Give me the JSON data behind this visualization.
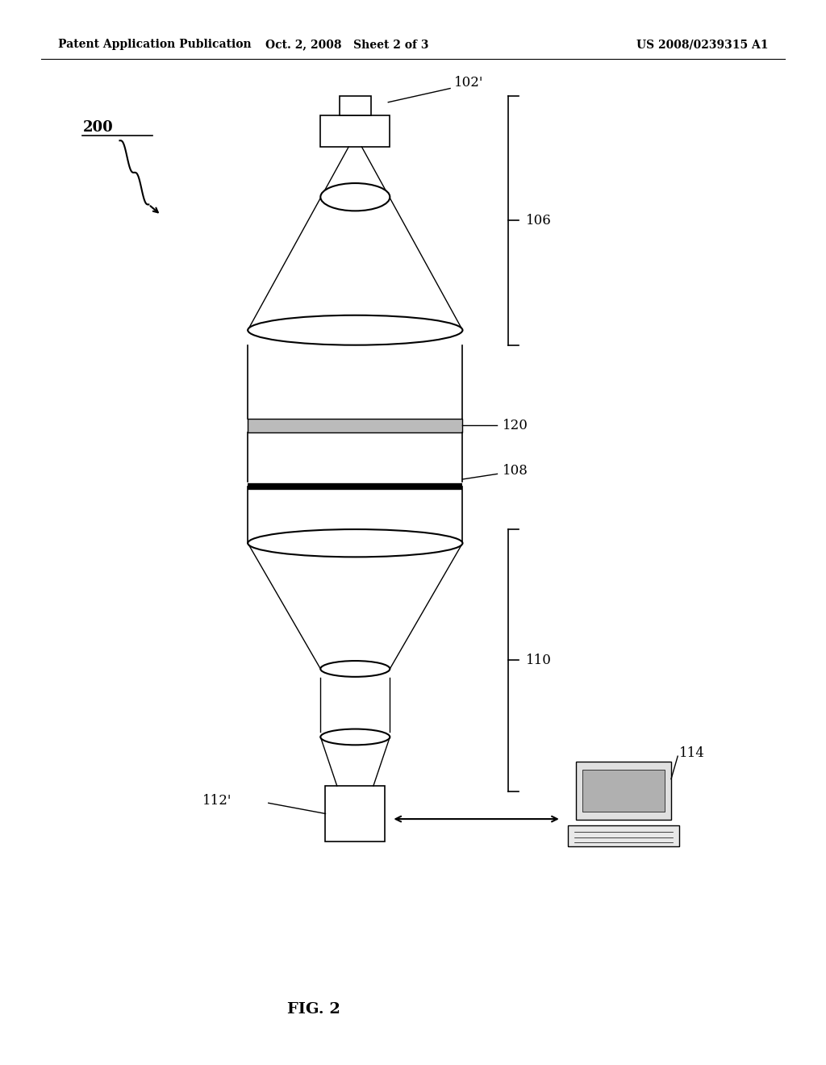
{
  "bg_color": "#ffffff",
  "line_color": "#000000",
  "header_left": "Patent Application Publication",
  "header_center": "Oct. 2, 2008   Sheet 2 of 3",
  "header_right": "US 2008/0239315 A1",
  "fig_label": "FIG. 2",
  "label_200": "200",
  "label_102": "102'",
  "label_106": "106",
  "label_120": "120",
  "label_108": "108",
  "label_110": "110",
  "label_112": "112'",
  "label_114": "114"
}
